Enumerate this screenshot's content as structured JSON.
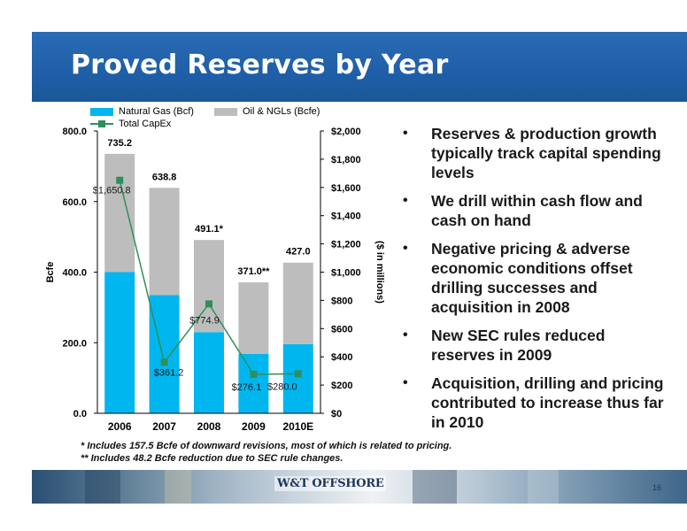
{
  "slide": {
    "title": "Proved Reserves by Year",
    "page_number": "16",
    "logo_text": "W&T OFFSHORE"
  },
  "bullets": [
    "Reserves & production growth typically track capital spending levels",
    "We drill within cash flow and cash on hand",
    "Negative pricing & adverse economic conditions offset drilling successes and acquisition in 2008",
    "New SEC rules reduced reserves in 2009",
    "Acquisition, drilling and pricing  contributed to increase thus far in 2010"
  ],
  "footnotes": [
    "* Includes 157.5 Bcfe of downward revisions, most of which is related to pricing.",
    "** Includes 48.2 Bcfe reduction due to SEC rule changes."
  ],
  "legend": {
    "gas": "Natural Gas (Bcf)",
    "oil": "Oil & NGLs (Bcfe)",
    "capex": "Total CapEx"
  },
  "colors": {
    "banner": "#1f5fa8",
    "gas": "#00b6ef",
    "oil": "#bdbdbd",
    "capex": "#2f8f5a"
  },
  "chart_data": {
    "type": "bar",
    "stacked": true,
    "categories": [
      "2006",
      "2007",
      "2008",
      "2009",
      "2010E"
    ],
    "series": [
      {
        "name": "Natural Gas (Bcf)",
        "values": [
          400,
          335,
          230,
          168,
          196
        ]
      },
      {
        "name": "Oil & NGLs (Bcfe)",
        "values": [
          335.2,
          303.8,
          261.1,
          203,
          231
        ]
      }
    ],
    "totals": [
      735.2,
      638.8,
      491.1,
      371.0,
      427.0
    ],
    "total_labels": [
      "735.2",
      "638.8",
      "491.1*",
      "371.0**",
      "427.0"
    ],
    "line_series": {
      "name": "Total CapEx",
      "axis": "right",
      "values": [
        1650.8,
        361.2,
        774.9,
        276.1,
        280.0
      ],
      "labels": [
        "$1,650.8",
        "$361.2",
        "$774.9",
        "$276.1",
        "$280.0"
      ]
    },
    "ylabel": "Bcfe",
    "ylim": [
      0,
      800
    ],
    "yticks": [
      "0.0",
      "200.0",
      "400.0",
      "600.0",
      "800.0"
    ],
    "y2label": "($ in millions)",
    "y2lim": [
      0,
      2000
    ],
    "y2ticks": [
      "$0",
      "$200",
      "$400",
      "$600",
      "$800",
      "$1,000",
      "$1,200",
      "$1,400",
      "$1,600",
      "$1,800",
      "$2,000"
    ],
    "grid": false,
    "legend_position": "top"
  }
}
